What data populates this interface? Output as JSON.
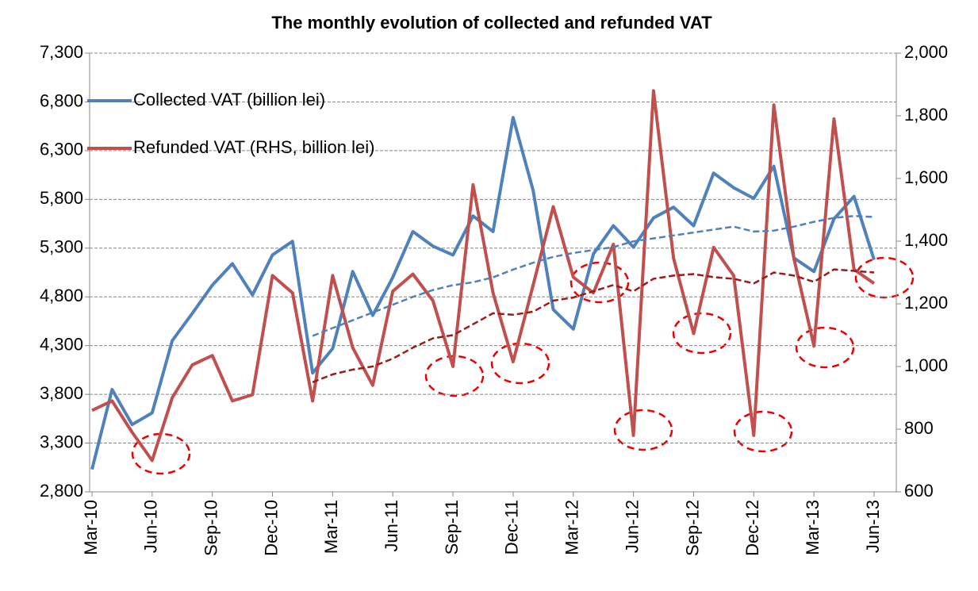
{
  "chart_data": {
    "type": "line",
    "title": "The monthly evolution of collected and refunded VAT",
    "categories": [
      "Mar-10",
      null,
      null,
      "Jun-10",
      null,
      null,
      "Sep-10",
      null,
      null,
      "Dec-10",
      null,
      null,
      "Mar-11",
      null,
      null,
      "Jun-11",
      null,
      null,
      "Sep-11",
      null,
      null,
      "Dec-11",
      null,
      null,
      "Mar-12",
      null,
      null,
      "Jun-12",
      null,
      null,
      "Sep-12",
      null,
      null,
      "Dec-12",
      null,
      null,
      "Mar-13",
      null,
      null,
      "Jun-13"
    ],
    "series": [
      {
        "name": "Collected VAT (billion lei)",
        "color": "#4f81bd",
        "values": [
          3030,
          3850,
          3490,
          3610,
          4350,
          4630,
          4920,
          5140,
          4820,
          5230,
          5370,
          4020,
          4270,
          5060,
          4610,
          5000,
          5470,
          5320,
          5230,
          5630,
          5470,
          6640,
          5890,
          4670,
          4470,
          5240,
          5530,
          5310,
          5610,
          5720,
          5530,
          6070,
          5920,
          5810,
          6140,
          5200,
          5060,
          5600,
          5830,
          5180
        ]
      },
      {
        "name": "Refunded VAT (RHS, billion lei)",
        "color": "#c0504d",
        "axis": "y2",
        "values": [
          860,
          890,
          790,
          700,
          900,
          1005,
          1035,
          890,
          910,
          1290,
          1235,
          890,
          1290,
          1060,
          940,
          1240,
          1295,
          1210,
          1000,
          1580,
          1235,
          1015,
          1260,
          1510,
          1285,
          1235,
          1390,
          780,
          1880,
          1345,
          1105,
          1380,
          1290,
          780,
          1835,
          1345,
          1065,
          1790,
          1310,
          1265
        ]
      },
      {
        "color": "#4f81bd",
        "dashed": true,
        "values": [
          null,
          null,
          null,
          null,
          null,
          null,
          null,
          null,
          null,
          null,
          null,
          4400,
          4480,
          4560,
          4640,
          4720,
          4800,
          4870,
          4920,
          4950,
          5000,
          5080,
          5150,
          5210,
          5250,
          5280,
          5310,
          5370,
          5400,
          5430,
          5460,
          5490,
          5520,
          5470,
          5480,
          5520,
          5570,
          5610,
          5630,
          5620
        ]
      },
      {
        "color": "#9b1b1b",
        "dashed": true,
        "axis": "y2",
        "values": [
          null,
          null,
          null,
          null,
          null,
          null,
          null,
          null,
          null,
          null,
          null,
          950,
          975,
          990,
          1000,
          1025,
          1060,
          1090,
          1100,
          1135,
          1170,
          1165,
          1175,
          1210,
          1220,
          1240,
          1260,
          1240,
          1280,
          1290,
          1295,
          1285,
          1280,
          1265,
          1300,
          1290,
          1270,
          1310,
          1305,
          1300
        ]
      }
    ],
    "ylim": [
      2800,
      7300
    ],
    "yticks": [
      {
        "value": 2800,
        "label": "2,800"
      },
      {
        "value": 3300,
        "label": "3,300"
      },
      {
        "value": 3800,
        "label": "3,800"
      },
      {
        "value": 4300,
        "label": "4,300"
      },
      {
        "value": 4800,
        "label": "4,800"
      },
      {
        "value": 5300,
        "label": "5,300"
      },
      {
        "value": 5800,
        "label": "5,800"
      },
      {
        "value": 6300,
        "label": "6,300"
      },
      {
        "value": 6800,
        "label": "6,800"
      },
      {
        "value": 7300,
        "label": "7,300"
      }
    ],
    "y2lim": [
      600,
      2000
    ],
    "y2ticks": [
      600,
      800,
      {
        "value": 1000,
        "label": "1,000"
      },
      {
        "value": 1200,
        "label": "1,200"
      },
      {
        "value": 1400,
        "label": "1,400"
      },
      {
        "value": 1600,
        "label": "1,600"
      },
      {
        "value": 1800,
        "label": "1,800"
      },
      {
        "value": 2000,
        "label": "2,000"
      }
    ],
    "grid": true,
    "legend": "upper-left"
  }
}
